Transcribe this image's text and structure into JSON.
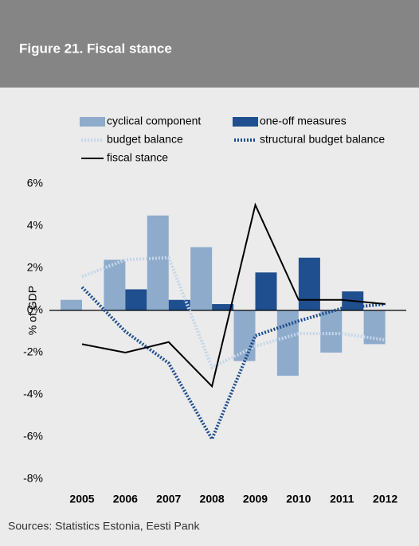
{
  "header": {
    "title": "Figure 21. Fiscal stance"
  },
  "chart_data": {
    "type": "bar-line",
    "ylabel": "% of GDP",
    "categories": [
      "2005",
      "2006",
      "2007",
      "2008",
      "2009",
      "2010",
      "2011",
      "2012"
    ],
    "ylim": [
      -8,
      6
    ],
    "yticks": [
      {
        "value": 6,
        "label": "6%"
      },
      {
        "value": 4,
        "label": "4%"
      },
      {
        "value": 2,
        "label": "2%"
      },
      {
        "value": 0,
        "label": "0%"
      },
      {
        "value": -2,
        "label": "-2%"
      },
      {
        "value": -4,
        "label": "-4%"
      },
      {
        "value": -6,
        "label": "-6%"
      },
      {
        "value": -8,
        "label": "-8%"
      }
    ],
    "series": [
      {
        "name": "cyclical component",
        "kind": "bar",
        "color": "#8eabcc",
        "values": [
          0.5,
          2.4,
          4.5,
          3.0,
          -2.4,
          -3.1,
          -2.0,
          -1.6
        ]
      },
      {
        "name": "one-off measures",
        "kind": "bar",
        "color": "#1f4f8e",
        "values": [
          0,
          1.0,
          0.5,
          0.3,
          1.8,
          2.5,
          0.9,
          0
        ]
      },
      {
        "name": "budget balance",
        "kind": "dotted",
        "color": "#c5d6e8",
        "values": [
          1.6,
          2.4,
          2.5,
          -2.7,
          -1.7,
          -1.1,
          -1.1,
          -1.4
        ]
      },
      {
        "name": "structural budget balance",
        "kind": "dotted",
        "color": "#1e4d8c",
        "values": [
          1.1,
          -1.0,
          -2.5,
          -6.1,
          -1.2,
          -0.5,
          0.1,
          0.3
        ]
      },
      {
        "name": "fiscal stance",
        "kind": "line",
        "color": "#000000",
        "values": [
          -1.6,
          -2.0,
          -1.5,
          -3.6,
          5.0,
          0.5,
          0.5,
          0.3
        ]
      }
    ]
  },
  "footer": {
    "source": "Sources: Statistics Estonia, Eesti Pank"
  }
}
